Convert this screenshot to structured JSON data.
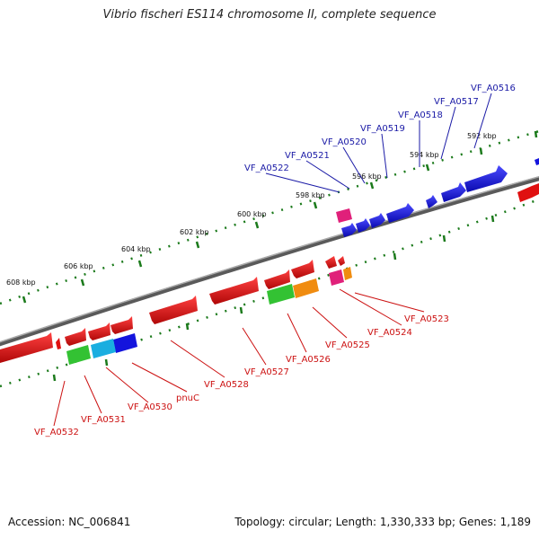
{
  "title": "Vibrio fischeri ES114 chromosome II, complete sequence",
  "footer": {
    "accession": "Accession: NC_006841",
    "info": "Topology: circular; Length: 1,330,333 bp; Genes: 1,189"
  },
  "ticks": {
    "outer": [
      "592 kbp",
      "594 kbp",
      "596 kbp",
      "598 kbp",
      "600 kbp",
      "602 kbp",
      "604 kbp",
      "606 kbp",
      "608 kbp"
    ]
  },
  "labels": {
    "forward": [
      "VF_A0516",
      "VF_A0517",
      "VF_A0518",
      "VF_A0519",
      "VF_A0520",
      "VF_A0521",
      "VF_A0522"
    ],
    "reverse": [
      "VF_A0523",
      "VF_A0524",
      "VF_A0525",
      "VF_A0526",
      "VF_A0527",
      "VF_A0528",
      "pnuC",
      "VF_A0530",
      "VF_A0531",
      "VF_A0532"
    ]
  },
  "colors": {
    "backbone": "#808080",
    "tick": "#1b7a1b",
    "forward_gene": "#1414dd",
    "reverse_gene": "#e01010",
    "magenta": "#e0207a",
    "green": "#33c233",
    "cyan": "#1aaee0",
    "orange": "#f08c10",
    "label_blue": "#1a1aa6",
    "label_red": "#cc1111"
  }
}
